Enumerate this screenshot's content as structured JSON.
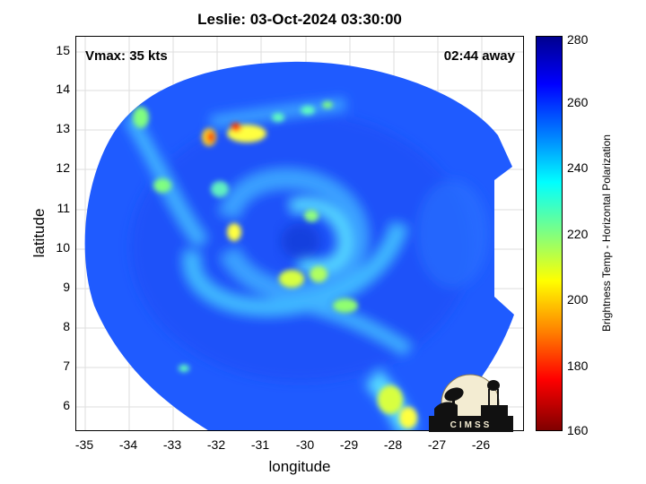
{
  "title": "Leslie: 03-Oct-2024 03:30:00",
  "vmax_label": "Vmax: 35 kts",
  "away_label": "02:44 away",
  "xlabel": "longitude",
  "ylabel": "latitude",
  "colorbar": {
    "label": "Brightness Temp - Horizontal Polarization",
    "ticks": [
      "280",
      "260",
      "240",
      "220",
      "200",
      "180",
      "160"
    ],
    "range": [
      160,
      280
    ],
    "colors": [
      "#800000",
      "#ff0000",
      "#ff8000",
      "#ffff00",
      "#80ff80",
      "#00ffff",
      "#0080ff",
      "#0000ff",
      "#00008f"
    ]
  },
  "x_ticks": [
    "-35",
    "-34",
    "-33",
    "-32",
    "-31",
    "-30",
    "-29",
    "-28",
    "-27",
    "-26"
  ],
  "y_ticks": [
    "15",
    "14",
    "13",
    "12",
    "11",
    "10",
    "9",
    "8",
    "7",
    "6"
  ],
  "logo": {
    "text": "CIMSS",
    "icon": "cimss-logo-icon"
  },
  "map": {
    "background_color": "#1f5bff",
    "lon_range": [
      -35.2,
      -25.0
    ],
    "lat_range": [
      5.4,
      15.4
    ],
    "storm_center": {
      "lon": -30.1,
      "lat": 10.3
    }
  }
}
